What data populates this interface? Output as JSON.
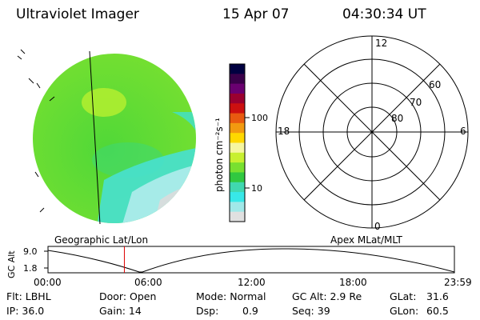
{
  "header": {
    "instrument": "Ultraviolet Imager",
    "date": "15 Apr 07",
    "time": "04:30:34 UT"
  },
  "colorbar": {
    "unit_label": "photon cm⁻²s⁻¹",
    "ticks": [
      "100",
      "10"
    ],
    "scale": "log",
    "colors": [
      "#000040",
      "#3a004a",
      "#6a0070",
      "#9a0030",
      "#cc1010",
      "#e85a10",
      "#f29a10",
      "#ffd800",
      "#f6f6a0",
      "#c8f030",
      "#78e030",
      "#30c840",
      "#40d8b0",
      "#38e8e8",
      "#a0e8e8",
      "#e0e0e0"
    ]
  },
  "polar_grid": {
    "mlt_labels": [
      "12",
      "18",
      "6",
      "0"
    ],
    "mlat_labels": [
      "60",
      "70",
      "80"
    ]
  },
  "timeline": {
    "left_label": "Geographic Lat/Lon",
    "right_label": "Apex MLat/MLT",
    "y_axis_label": "GC Alt",
    "y_ticks": [
      "9.0",
      "1.8"
    ],
    "x_ticks": [
      "00:00",
      "06:00",
      "12:00",
      "18:00",
      "23:59"
    ],
    "current_time_fraction": 0.1879,
    "marker_color": "#dd0000"
  },
  "status": {
    "flt": "Flt: LBHL",
    "ip": "IP: 36.0",
    "door": "Door: Open",
    "gain": "Gain: 14",
    "mode": "Mode: Normal",
    "dsp_label": "Dsp:",
    "dsp_value": "0.9",
    "gc_alt": "GC Alt: 2.9 Re",
    "seq": "Seq: 39",
    "glat_label": "GLat:",
    "glat_value": "31.6",
    "glon_label": "GLon:",
    "glon_value": "60.5"
  }
}
